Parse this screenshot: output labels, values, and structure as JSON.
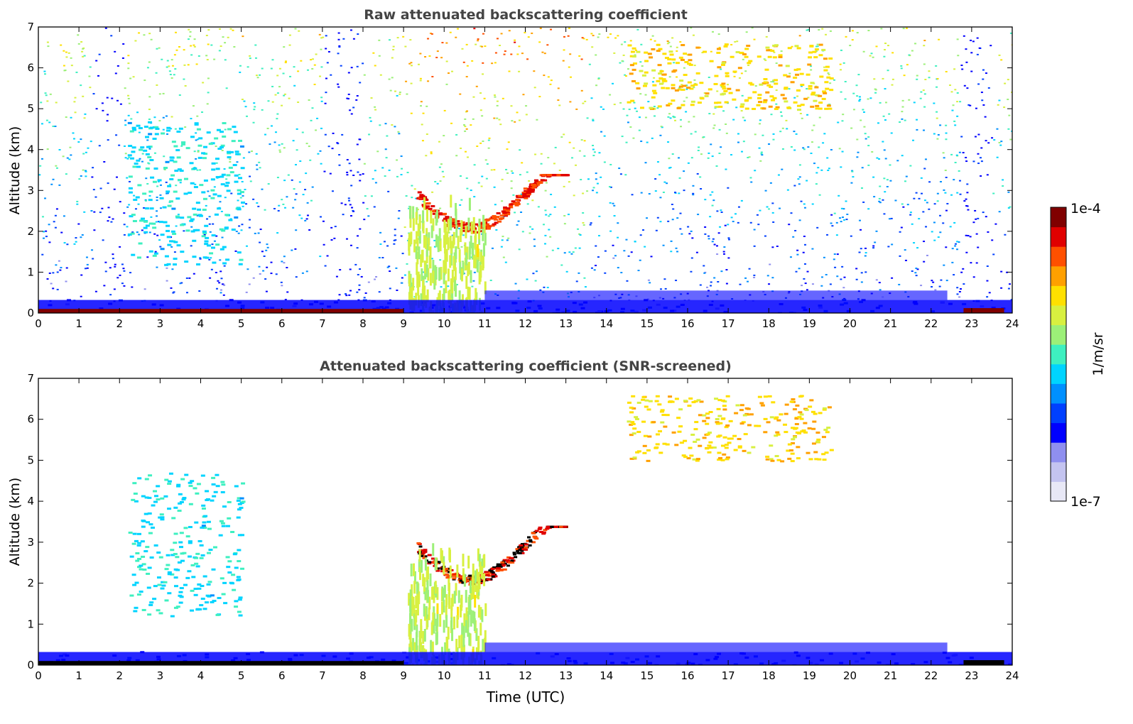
{
  "chart_data": [
    {
      "type": "heatmap",
      "title": "Raw attenuated backscattering coefficient",
      "xlabel": "",
      "ylabel": "Altitude (km)",
      "xlim": [
        0,
        24
      ],
      "ylim": [
        0,
        7
      ],
      "x_ticks": [
        "0",
        "1",
        "2",
        "3",
        "4",
        "5",
        "6",
        "7",
        "8",
        "9",
        "10",
        "11",
        "12",
        "13",
        "14",
        "15",
        "16",
        "17",
        "18",
        "19",
        "20",
        "21",
        "22",
        "23",
        "24"
      ],
      "y_ticks": [
        "0",
        "1",
        "2",
        "3",
        "4",
        "5",
        "6",
        "7"
      ],
      "features": [
        {
          "name": "surface layer",
          "time": [
            0,
            9.0
          ],
          "alt": [
            0,
            0.08
          ],
          "level": 0.95
        },
        {
          "name": "boundary layer",
          "time": [
            0,
            24
          ],
          "alt": [
            0,
            0.35
          ],
          "level": 0.22
        },
        {
          "name": "cloud layer",
          "time": [
            9.3,
            13.0
          ],
          "alt": [
            1.8,
            3.4
          ],
          "level": 0.9
        },
        {
          "name": "high cloud",
          "time": [
            14.5,
            19.5
          ],
          "alt": [
            5.0,
            6.6
          ],
          "level": 0.72
        },
        {
          "name": "precipitation streaks",
          "time": [
            9.1,
            11.0
          ],
          "alt": [
            0,
            3.0
          ],
          "level": 0.62
        },
        {
          "name": "sparse aerosol",
          "time": [
            2.2,
            5.0
          ],
          "alt": [
            1.2,
            4.7
          ],
          "level": 0.45
        }
      ]
    },
    {
      "type": "heatmap",
      "title": "Attenuated backscattering coefficient (SNR-screened)",
      "xlabel": "Time (UTC)",
      "ylabel": "Altitude (km)",
      "xlim": [
        0,
        24
      ],
      "ylim": [
        0,
        7
      ],
      "x_ticks": [
        "0",
        "1",
        "2",
        "3",
        "4",
        "5",
        "6",
        "7",
        "8",
        "9",
        "10",
        "11",
        "12",
        "13",
        "14",
        "15",
        "16",
        "17",
        "18",
        "19",
        "20",
        "21",
        "22",
        "23",
        "24"
      ],
      "y_ticks": [
        "0",
        "1",
        "2",
        "3",
        "4",
        "5",
        "6",
        "7"
      ],
      "features": [
        {
          "name": "surface layer",
          "time": [
            0,
            9.0
          ],
          "alt": [
            0,
            0.08
          ],
          "level": 0.95
        },
        {
          "name": "boundary layer",
          "time": [
            0,
            24
          ],
          "alt": [
            0,
            0.35
          ],
          "level": 0.22
        },
        {
          "name": "cloud layer",
          "time": [
            9.3,
            13.0
          ],
          "alt": [
            1.8,
            3.4
          ],
          "level": 0.9
        },
        {
          "name": "high cloud",
          "time": [
            14.5,
            19.5
          ],
          "alt": [
            5.0,
            6.6
          ],
          "level": 0.72
        },
        {
          "name": "precipitation streaks",
          "time": [
            9.1,
            11.0
          ],
          "alt": [
            0,
            3.0
          ],
          "level": 0.62
        },
        {
          "name": "aerosol",
          "time": [
            2.2,
            5.0
          ],
          "alt": [
            1.2,
            4.7
          ],
          "level": 0.45
        }
      ]
    }
  ],
  "colorbar": {
    "label": "1/m/sr",
    "max_label": "1e-4",
    "min_label": "1e-7",
    "colors": [
      "#e8e8f6",
      "#c4c4f0",
      "#8f8fef",
      "#0000ff",
      "#0040ff",
      "#0090ff",
      "#00d4ff",
      "#3ef0c0",
      "#9cf078",
      "#d8f040",
      "#ffe000",
      "#ffa000",
      "#ff5000",
      "#e00000",
      "#800000"
    ]
  }
}
